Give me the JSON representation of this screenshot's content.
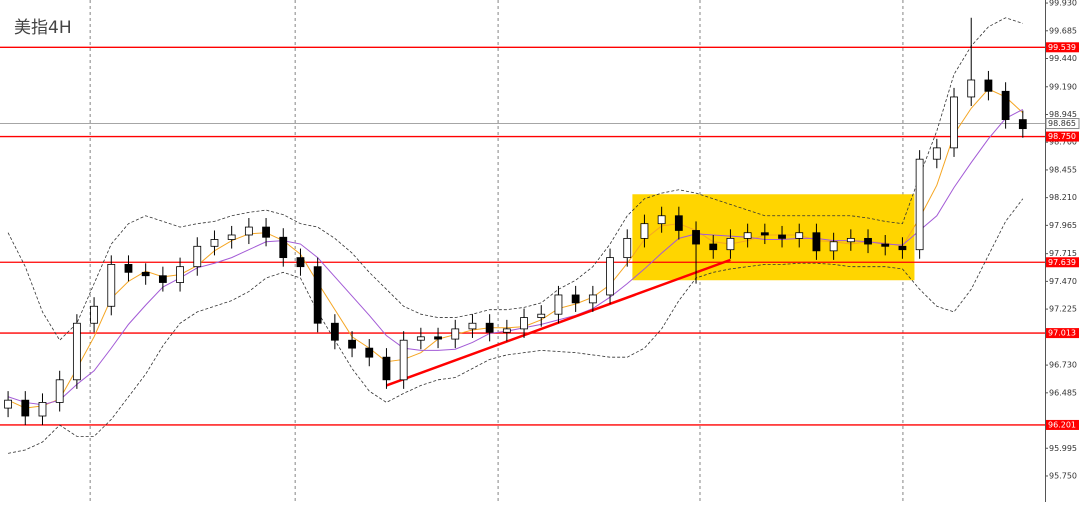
{
  "chart_data": {
    "type": "candlestick",
    "title": "美指4H",
    "xlim": [
      -0.47,
      60.29
    ],
    "ylim": [
      95.52,
      99.957
    ],
    "yticks": [
      {
        "value": 99.93,
        "label": "99.930"
      },
      99.685,
      {
        "value": 99.44,
        "label": "99.440"
      },
      {
        "value": 99.19,
        "label": "99.190"
      },
      98.945,
      {
        "value": 98.7,
        "label": "98.700"
      },
      98.455,
      {
        "value": 98.21,
        "label": "98.210"
      },
      97.965,
      97.715,
      {
        "value": 97.47,
        "label": "97.470"
      },
      97.225,
      {
        "value": 96.73,
        "label": "96.730"
      },
      96.485,
      95.995,
      {
        "value": 95.75,
        "label": "95.750"
      }
    ],
    "xgrid": [
      4.77,
      16.69,
      28.49,
      40.23,
      52.03
    ],
    "open": [
      96.35,
      96.42,
      96.28,
      96.4,
      96.6,
      97.1,
      97.25,
      97.62,
      97.55,
      97.52,
      97.46,
      97.6,
      97.78,
      97.84,
      97.88,
      97.95,
      97.86,
      97.68,
      97.6,
      97.1,
      96.95,
      96.88,
      96.8,
      96.6,
      96.95,
      96.98,
      96.96,
      97.05,
      97.1,
      97.02,
      97.05,
      97.15,
      97.18,
      97.35,
      97.28,
      97.35,
      97.68,
      97.85,
      97.98,
      98.05,
      97.92,
      97.8,
      97.75,
      97.85,
      97.9,
      97.88,
      97.85,
      97.9,
      97.74,
      97.82,
      97.85,
      97.8,
      97.78,
      97.75,
      98.55,
      98.65,
      99.1,
      99.25,
      99.15,
      98.9
    ],
    "high": [
      96.5,
      96.5,
      96.48,
      96.68,
      97.18,
      97.33,
      97.7,
      97.7,
      97.63,
      97.6,
      97.68,
      97.86,
      97.92,
      97.96,
      98.03,
      98.03,
      97.94,
      97.76,
      97.68,
      97.18,
      97.03,
      96.96,
      96.88,
      97.03,
      97.06,
      97.06,
      97.13,
      97.18,
      97.18,
      97.13,
      97.23,
      97.26,
      97.43,
      97.43,
      97.43,
      97.76,
      97.93,
      98.06,
      98.13,
      98.13,
      98.0,
      97.88,
      97.93,
      97.98,
      97.98,
      97.96,
      97.98,
      97.98,
      97.9,
      97.93,
      97.93,
      97.88,
      97.86,
      98.63,
      98.73,
      99.18,
      99.8,
      99.33,
      99.23,
      98.98
    ],
    "low": [
      96.27,
      96.2,
      96.2,
      96.32,
      96.52,
      97.02,
      97.17,
      97.47,
      97.44,
      97.38,
      97.38,
      97.52,
      97.7,
      97.76,
      97.8,
      97.78,
      97.6,
      97.52,
      97.02,
      96.87,
      96.8,
      96.72,
      96.52,
      96.52,
      96.87,
      96.88,
      96.88,
      96.97,
      96.94,
      96.94,
      96.97,
      97.07,
      97.1,
      97.2,
      97.2,
      97.27,
      97.6,
      97.77,
      97.9,
      97.84,
      97.45,
      97.67,
      97.67,
      97.77,
      97.8,
      97.77,
      97.77,
      97.66,
      97.66,
      97.74,
      97.72,
      97.7,
      97.67,
      97.67,
      98.47,
      98.57,
      99.02,
      99.07,
      98.82,
      98.74
    ],
    "close": [
      96.42,
      96.28,
      96.4,
      96.6,
      97.1,
      97.25,
      97.62,
      97.55,
      97.52,
      97.46,
      97.6,
      97.78,
      97.84,
      97.88,
      97.95,
      97.86,
      97.68,
      97.6,
      97.1,
      96.95,
      96.88,
      96.8,
      96.6,
      96.95,
      96.98,
      96.96,
      97.05,
      97.1,
      97.02,
      97.05,
      97.15,
      97.18,
      97.35,
      97.28,
      97.35,
      97.68,
      97.85,
      97.98,
      98.05,
      97.92,
      97.8,
      97.75,
      97.85,
      97.9,
      97.88,
      97.85,
      97.9,
      97.74,
      97.82,
      97.85,
      97.8,
      97.78,
      97.75,
      98.55,
      98.65,
      99.1,
      99.25,
      99.15,
      98.9,
      98.82
    ],
    "lines": [
      {
        "color": "#f5a623",
        "dash": false,
        "values": [
          96.42,
          96.35,
          96.37,
          96.43,
          96.7,
          96.98,
          97.32,
          97.47,
          97.56,
          97.51,
          97.53,
          97.61,
          97.74,
          97.83,
          97.89,
          97.9,
          97.83,
          97.71,
          97.46,
          97.22,
          96.98,
          96.88,
          96.76,
          96.78,
          96.84,
          96.96,
          97.0,
          97.04,
          97.06,
          97.06,
          97.07,
          97.13,
          97.23,
          97.27,
          97.33,
          97.44,
          97.63,
          97.84,
          97.96,
          97.98,
          97.92,
          97.82,
          97.8,
          97.83,
          97.88,
          97.88,
          97.88,
          97.83,
          97.82,
          97.8,
          97.82,
          97.81,
          97.78,
          98.03,
          98.32,
          98.77,
          99.0,
          99.17,
          99.1,
          98.96
        ]
      },
      {
        "color": "#a35bd6",
        "dash": false,
        "values": [
          96.45,
          96.4,
          96.38,
          96.42,
          96.56,
          96.68,
          96.88,
          97.09,
          97.26,
          97.42,
          97.5,
          97.59,
          97.63,
          97.68,
          97.75,
          97.82,
          97.83,
          97.8,
          97.68,
          97.51,
          97.34,
          97.17,
          96.99,
          96.88,
          96.86,
          96.86,
          96.87,
          96.93,
          97.01,
          97.03,
          97.06,
          97.09,
          97.13,
          97.17,
          97.23,
          97.33,
          97.45,
          97.58,
          97.72,
          97.85,
          97.89,
          97.88,
          97.87,
          97.86,
          97.84,
          97.84,
          97.85,
          97.85,
          97.83,
          97.83,
          97.82,
          97.8,
          97.79,
          97.92,
          98.05,
          98.3,
          98.52,
          98.73,
          98.91,
          98.99
        ]
      },
      {
        "color": "#333333",
        "dash": true,
        "values": [
          97.9,
          97.6,
          97.2,
          96.95,
          97.1,
          97.45,
          97.8,
          97.98,
          98.05,
          98.0,
          97.95,
          97.98,
          98.0,
          98.05,
          98.08,
          98.1,
          98.06,
          97.98,
          97.95,
          97.85,
          97.72,
          97.55,
          97.4,
          97.25,
          97.18,
          97.15,
          97.15,
          97.18,
          97.22,
          97.22,
          97.24,
          97.28,
          97.4,
          97.48,
          97.6,
          97.8,
          98.05,
          98.2,
          98.25,
          98.28,
          98.25,
          98.2,
          98.15,
          98.1,
          98.05,
          98.05,
          98.05,
          98.05,
          98.05,
          98.05,
          98.03,
          98.0,
          97.98,
          98.4,
          98.8,
          99.3,
          99.55,
          99.72,
          99.8,
          99.75
        ]
      },
      {
        "color": "#333333",
        "dash": true,
        "values": [
          95.95,
          95.98,
          96.05,
          96.2,
          96.1,
          96.1,
          96.25,
          96.45,
          96.65,
          96.9,
          97.1,
          97.2,
          97.25,
          97.3,
          97.38,
          97.5,
          97.55,
          97.5,
          97.2,
          96.95,
          96.7,
          96.5,
          96.4,
          96.48,
          96.55,
          96.6,
          96.62,
          96.7,
          96.78,
          96.82,
          96.84,
          96.86,
          96.85,
          96.84,
          96.82,
          96.8,
          96.8,
          96.88,
          97.05,
          97.3,
          97.5,
          97.55,
          97.58,
          97.6,
          97.62,
          97.62,
          97.63,
          97.63,
          97.62,
          97.6,
          97.6,
          97.6,
          97.58,
          97.4,
          97.25,
          97.2,
          97.4,
          97.7,
          98.0,
          98.2
        ]
      }
    ],
    "zone": {
      "color": "#ffd500",
      "x": [
        36.3,
        52.7
      ],
      "y": [
        97.48,
        98.24
      ]
    },
    "trendline": {
      "color": "#ff0000",
      "x": [
        22,
        42
      ],
      "y": [
        96.55,
        97.66
      ]
    },
    "levels": [
      99.539,
      {
        "value": 98.75,
        "label": "98.750"
      },
      97.639,
      97.013,
      96.201
    ],
    "level_color": "#ff0000",
    "current_price": 98.865
  }
}
